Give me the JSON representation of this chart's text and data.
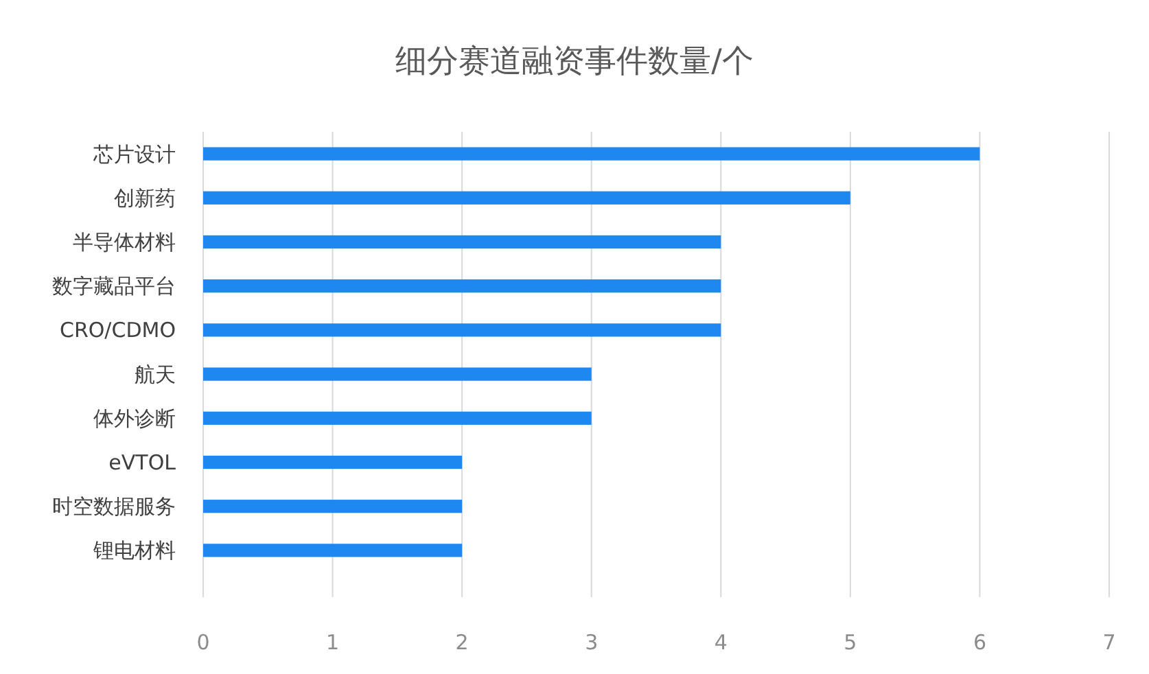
{
  "chart_data": {
    "type": "bar",
    "orientation": "horizontal",
    "title": "细分赛道融资事件数量/个",
    "categories": [
      "芯片设计",
      "创新药",
      "半导体材料",
      "数字藏品平台",
      "CRO/CDMO",
      "航天",
      "体外诊断",
      "eVTOL",
      "时空数据服务",
      "锂电材料"
    ],
    "values": [
      6,
      5,
      4,
      4,
      4,
      3,
      3,
      2,
      2,
      2
    ],
    "color": "#1e88f0",
    "xlim": [
      0,
      7
    ],
    "xticks": [
      0,
      1,
      2,
      3,
      4,
      5,
      6,
      7
    ],
    "grid": "x"
  }
}
